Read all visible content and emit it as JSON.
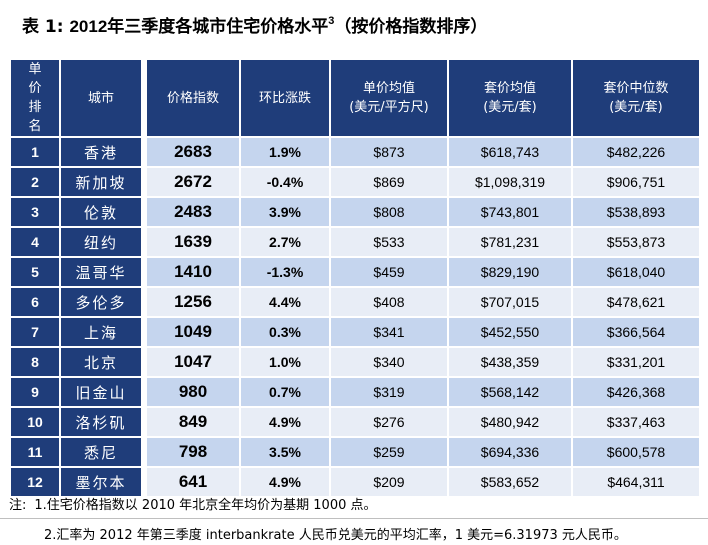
{
  "title": {
    "prefix": "表 1:",
    "year": "2012",
    "text": "年三季度各城市住宅价格水平",
    "sup": "3",
    "suffix": "（按价格指数排序）"
  },
  "table": {
    "headers": {
      "rank": "单价排名",
      "city": "城市",
      "index": "价格指数",
      "change": "环比涨跌",
      "unit_price": "单价均值",
      "unit_price_unit": "(美元/平方尺)",
      "set_price": "套价均值",
      "set_price_unit": "(美元/套)",
      "median": "套价中位数",
      "median_unit": "(美元/套)"
    },
    "rows": [
      {
        "rank": "1",
        "city": "香港",
        "index": "2683",
        "change": "1.9%",
        "unit_price": "$873",
        "set_price": "$618,743",
        "median": "$482,226"
      },
      {
        "rank": "2",
        "city": "新加坡",
        "index": "2672",
        "change": "-0.4%",
        "unit_price": "$869",
        "set_price": "$1,098,319",
        "median": "$906,751"
      },
      {
        "rank": "3",
        "city": "伦敦",
        "index": "2483",
        "change": "3.9%",
        "unit_price": "$808",
        "set_price": "$743,801",
        "median": "$538,893"
      },
      {
        "rank": "4",
        "city": "纽约",
        "index": "1639",
        "change": "2.7%",
        "unit_price": "$533",
        "set_price": "$781,231",
        "median": "$553,873"
      },
      {
        "rank": "5",
        "city": "温哥华",
        "index": "1410",
        "change": "-1.3%",
        "unit_price": "$459",
        "set_price": "$829,190",
        "median": "$618,040"
      },
      {
        "rank": "6",
        "city": "多伦多",
        "index": "1256",
        "change": "4.4%",
        "unit_price": "$408",
        "set_price": "$707,015",
        "median": "$478,621"
      },
      {
        "rank": "7",
        "city": "上海",
        "index": "1049",
        "change": "0.3%",
        "unit_price": "$341",
        "set_price": "$452,550",
        "median": "$366,564"
      },
      {
        "rank": "8",
        "city": "北京",
        "index": "1047",
        "change": "1.0%",
        "unit_price": "$340",
        "set_price": "$438,359",
        "median": "$331,201"
      },
      {
        "rank": "9",
        "city": "旧金山",
        "index": "980",
        "change": "0.7%",
        "unit_price": "$319",
        "set_price": "$568,142",
        "median": "$426,368"
      },
      {
        "rank": "10",
        "city": "洛杉矶",
        "index": "849",
        "change": "4.9%",
        "unit_price": "$276",
        "set_price": "$480,942",
        "median": "$337,463"
      },
      {
        "rank": "11",
        "city": "悉尼",
        "index": "798",
        "change": "3.5%",
        "unit_price": "$259",
        "set_price": "$694,336",
        "median": "$600,578"
      },
      {
        "rank": "12",
        "city": "墨尔本",
        "index": "641",
        "change": "4.9%",
        "unit_price": "$209",
        "set_price": "$583,652",
        "median": "$464,311"
      }
    ]
  },
  "notes": {
    "label": "注:",
    "note1": "1.住宅价格指数以 2010 年北京全年均价为基期 1000 点。",
    "note2": "2.汇率为 2012 年第三季度 interbankrate 人民币兑美元的平均汇率，1 美元=6.31973 元人民币。"
  },
  "colors": {
    "header_bg": "#1f3d7a",
    "row_odd": "#c5d5ee",
    "row_even": "#e8edf6"
  }
}
